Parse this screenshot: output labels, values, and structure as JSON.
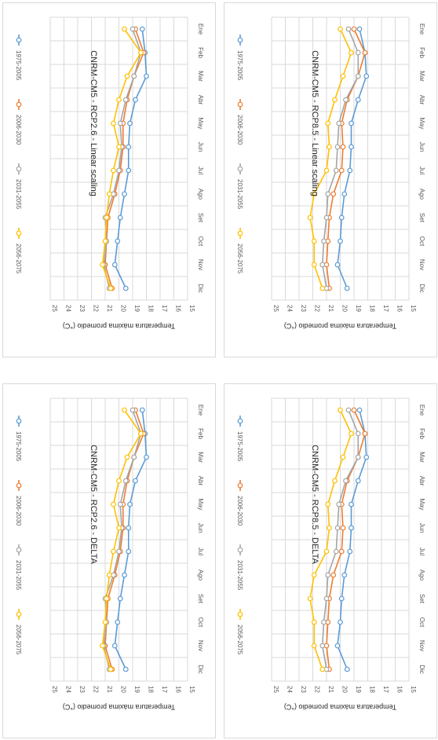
{
  "chart_data": [
    {
      "type": "line",
      "title": "CNRM-CM5 - RCP2.6 - Linear scaling",
      "ylabel": "Temperatura máxima promedio (°C)",
      "xlabel": "",
      "ylim": [
        15,
        25
      ],
      "yticks": [
        25,
        24,
        23,
        22,
        21,
        20,
        19,
        18,
        17,
        16,
        15
      ],
      "categories": [
        "Ene",
        "Feb",
        "Mar",
        "Abr",
        "May",
        "Jun",
        "Jul",
        "Ago",
        "Set",
        "Oct",
        "Nov",
        "Dic"
      ],
      "series": [
        {
          "name": "1975-2005",
          "color": "#5b9bd5",
          "values": [
            18.3,
            18.1,
            18.0,
            18.8,
            19.2,
            19.3,
            19.3,
            19.6,
            19.9,
            20.1,
            20.3,
            19.5
          ]
        },
        {
          "name": "2006-2030",
          "color": "#ed7d31",
          "values": [
            18.8,
            18.2,
            18.9,
            19.4,
            19.7,
            19.7,
            19.9,
            20.3,
            20.8,
            20.9,
            21.0,
            20.5
          ]
        },
        {
          "name": "2031-2055",
          "color": "#a5a5a5",
          "values": [
            19.0,
            18.4,
            18.9,
            19.5,
            19.9,
            19.8,
            20.0,
            20.4,
            21.0,
            20.9,
            21.1,
            20.7
          ]
        },
        {
          "name": "2056-2075",
          "color": "#ffc000",
          "values": [
            19.6,
            18.4,
            19.4,
            20.0,
            20.4,
            20.0,
            20.4,
            20.7,
            20.9,
            21.0,
            21.2,
            20.6
          ]
        }
      ]
    },
    {
      "type": "line",
      "title": "CNRM-CM5 - RCP2.6 - DELTA",
      "ylabel": "Temperatura máxima promedio (°C)",
      "xlabel": "",
      "ylim": [
        15,
        25
      ],
      "yticks": [
        25,
        24,
        23,
        22,
        21,
        20,
        19,
        18,
        17,
        16,
        15
      ],
      "categories": [
        "Ene",
        "Feb",
        "Mar",
        "Abr",
        "May",
        "Jun",
        "Jul",
        "Ago",
        "Set",
        "Oct",
        "Nov",
        "Dic"
      ],
      "series": [
        {
          "name": "1975-2005",
          "color": "#5b9bd5",
          "values": [
            18.3,
            18.1,
            18.0,
            18.8,
            19.2,
            19.3,
            19.3,
            19.6,
            19.9,
            20.1,
            20.3,
            19.5
          ]
        },
        {
          "name": "2006-2030",
          "color": "#ed7d31",
          "values": [
            18.8,
            18.2,
            18.9,
            19.4,
            19.7,
            19.7,
            19.9,
            20.3,
            20.8,
            20.9,
            21.0,
            20.5
          ]
        },
        {
          "name": "2031-2055",
          "color": "#a5a5a5",
          "values": [
            19.0,
            18.4,
            18.9,
            19.5,
            19.9,
            19.8,
            20.0,
            20.4,
            21.0,
            20.9,
            21.1,
            20.7
          ]
        },
        {
          "name": "2056-2075",
          "color": "#ffc000",
          "values": [
            19.6,
            18.4,
            19.4,
            20.0,
            20.4,
            20.0,
            20.4,
            20.7,
            20.9,
            21.0,
            21.2,
            20.6
          ]
        }
      ]
    },
    {
      "type": "line",
      "title": "CNRM-CM5 - RCP8.5 - Linear  scaling",
      "ylabel": "Temperatura máxima promedio (°C)",
      "xlabel": "",
      "ylim": [
        15,
        25
      ],
      "yticks": [
        25,
        24,
        23,
        22,
        21,
        20,
        19,
        18,
        17,
        16,
        15
      ],
      "categories": [
        "Ene",
        "Feb",
        "Mar",
        "Abr",
        "May",
        "Jun",
        "Jul",
        "Ago",
        "Set",
        "Oct",
        "Nov",
        "Dic"
      ],
      "series": [
        {
          "name": "1975-2005",
          "color": "#5b9bd5",
          "values": [
            18.6,
            18.2,
            18.1,
            18.7,
            19.2,
            19.2,
            19.3,
            19.7,
            19.9,
            20.0,
            20.2,
            19.5
          ]
        },
        {
          "name": "2006-2030",
          "color": "#ed7d31",
          "values": [
            19.0,
            18.2,
            18.7,
            19.5,
            19.9,
            19.8,
            19.9,
            20.5,
            20.8,
            20.9,
            21.0,
            20.8
          ]
        },
        {
          "name": "2031-2055",
          "color": "#a5a5a5",
          "values": [
            19.4,
            18.7,
            18.7,
            19.6,
            20.1,
            20.2,
            20.3,
            20.9,
            21.0,
            21.2,
            21.3,
            21.0
          ]
        },
        {
          "name": "2056-2075",
          "color": "#ffc000",
          "values": [
            20.0,
            19.2,
            19.8,
            20.4,
            20.9,
            20.8,
            21.0,
            21.9,
            22.2,
            21.9,
            21.9,
            21.3
          ]
        }
      ]
    },
    {
      "type": "line",
      "title": "CNRM-CM5 - RCP8.5 - DELTA",
      "ylabel": "Temperatura máxima promedio (°C)",
      "xlabel": "",
      "ylim": [
        15,
        25
      ],
      "yticks": [
        25,
        24,
        23,
        22,
        21,
        20,
        19,
        18,
        17,
        16,
        15
      ],
      "categories": [
        "Ene",
        "Feb",
        "Mar",
        "Abr",
        "May",
        "Jun",
        "Jul",
        "Ago",
        "Set",
        "Oct",
        "Nov",
        "Dic"
      ],
      "series": [
        {
          "name": "1975-2005",
          "color": "#5b9bd5",
          "values": [
            18.6,
            18.2,
            18.1,
            18.7,
            19.2,
            19.2,
            19.3,
            19.7,
            19.9,
            20.0,
            20.2,
            19.5
          ]
        },
        {
          "name": "2006-2030",
          "color": "#ed7d31",
          "values": [
            19.0,
            18.2,
            18.7,
            19.5,
            19.9,
            19.8,
            19.9,
            20.5,
            20.8,
            20.9,
            21.0,
            20.8
          ]
        },
        {
          "name": "2031-2055",
          "color": "#a5a5a5",
          "values": [
            19.4,
            18.7,
            18.7,
            19.6,
            20.1,
            20.2,
            20.3,
            20.9,
            21.0,
            21.2,
            21.3,
            21.0
          ]
        },
        {
          "name": "2056-2075",
          "color": "#ffc000",
          "values": [
            20.0,
            19.2,
            19.8,
            20.4,
            20.9,
            20.8,
            21.0,
            21.9,
            22.2,
            21.9,
            21.9,
            21.3
          ]
        }
      ]
    }
  ]
}
